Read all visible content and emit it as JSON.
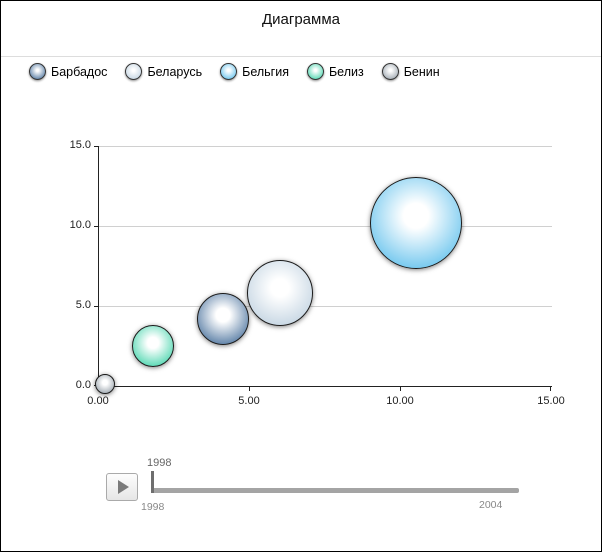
{
  "title": "Диаграмма",
  "legend": {
    "items": [
      {
        "label": "Барбадос",
        "color": "#5b7fa6"
      },
      {
        "label": "Беларусь",
        "color": "#c6d6e3"
      },
      {
        "label": "Бельгия",
        "color": "#6fc6ee"
      },
      {
        "label": "Белиз",
        "color": "#56d8b3"
      },
      {
        "label": "Бенин",
        "color": "#a3acb4"
      }
    ]
  },
  "chart_data": {
    "type": "scatter",
    "subtype": "bubble",
    "title": "Диаграмма",
    "xlabel": "",
    "ylabel": "",
    "xlim": [
      0,
      15
    ],
    "ylim": [
      0,
      15
    ],
    "grid": true,
    "legend_position": "top",
    "x_ticks": [
      "0.00",
      "5.00",
      "10.00",
      "15.00"
    ],
    "y_ticks": [
      "0.0",
      "5.0",
      "10.0",
      "15.0"
    ],
    "series": [
      {
        "name": "Бенин",
        "x": 0.2,
        "y": 0.1,
        "radius_px": 10,
        "color": "#a3acb4"
      },
      {
        "name": "Белиз",
        "x": 1.8,
        "y": 2.5,
        "radius_px": 21,
        "color": "#56d8b3"
      },
      {
        "name": "Барбадос",
        "x": 4.1,
        "y": 4.2,
        "radius_px": 26,
        "color": "#5b7fa6"
      },
      {
        "name": "Беларусь",
        "x": 6.0,
        "y": 5.8,
        "radius_px": 33,
        "color": "#c6d6e3"
      },
      {
        "name": "Бельгия",
        "x": 10.5,
        "y": 10.2,
        "radius_px": 46,
        "color": "#6fc6ee"
      }
    ]
  },
  "timeline": {
    "current_year": "1998",
    "start_label": "1998",
    "end_label": "2004"
  }
}
